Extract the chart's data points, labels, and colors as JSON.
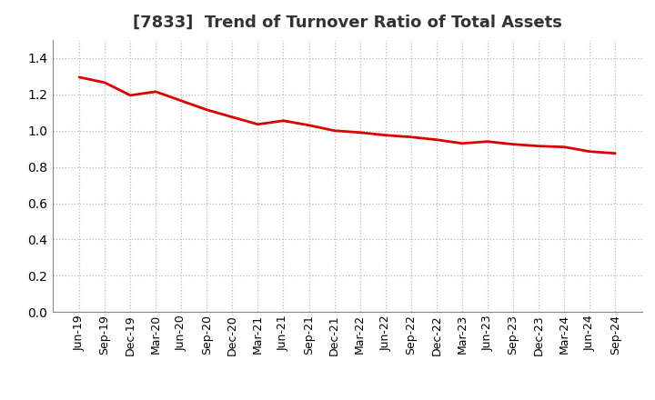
{
  "title": "[7833]  Trend of Turnover Ratio of Total Assets",
  "title_fontsize": 13,
  "title_fontweight": "bold",
  "title_color": "#333333",
  "line_color": "#DD0000",
  "line_width": 2.0,
  "background_color": "#FFFFFF",
  "grid_color": "#BBBBBB",
  "ylim": [
    0.0,
    1.5
  ],
  "yticks": [
    0.0,
    0.2,
    0.4,
    0.6,
    0.8,
    1.0,
    1.2,
    1.4
  ],
  "x_labels": [
    "Jun-19",
    "Sep-19",
    "Dec-19",
    "Mar-20",
    "Jun-20",
    "Sep-20",
    "Dec-20",
    "Mar-21",
    "Jun-21",
    "Sep-21",
    "Dec-21",
    "Mar-22",
    "Jun-22",
    "Sep-22",
    "Dec-22",
    "Mar-23",
    "Jun-23",
    "Sep-23",
    "Dec-23",
    "Mar-24",
    "Jun-24",
    "Sep-24"
  ],
  "values": [
    1.295,
    1.265,
    1.195,
    1.215,
    1.165,
    1.115,
    1.075,
    1.035,
    1.055,
    1.03,
    1.0,
    0.99,
    0.975,
    0.965,
    0.95,
    0.93,
    0.94,
    0.925,
    0.915,
    0.91,
    0.885,
    0.875
  ],
  "tick_fontsize": 9,
  "ytick_fontsize": 10
}
